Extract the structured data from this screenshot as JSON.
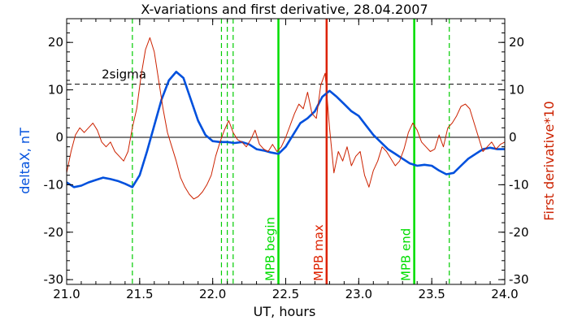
{
  "chart_data": {
    "type": "line",
    "title": "X-variations and first derivative, 28.04.2007",
    "xlabel": "UT, hours",
    "ylabel_left": "deltaX, nT",
    "ylabel_right": "First derivative*10",
    "xlim": [
      21.0,
      24.0
    ],
    "ylim": [
      -31,
      25
    ],
    "x_ticks": [
      21.0,
      21.5,
      22.0,
      22.5,
      23.0,
      23.5,
      24.0
    ],
    "x_tick_labels": [
      "21.0",
      "21.5",
      "22.0",
      "22.5",
      "23.0",
      "23.5",
      "24.0"
    ],
    "y_ticks": [
      -30,
      -20,
      -10,
      0,
      10,
      20
    ],
    "y_tick_labels": [
      "-30",
      "-20",
      "-10",
      "0",
      "10",
      "20"
    ],
    "threshold": {
      "label": "2sigma",
      "value": 11.2
    },
    "zero_line": 0,
    "dashed_markers": [
      21.45,
      22.06,
      22.1,
      22.14,
      23.62
    ],
    "solid_markers": [
      {
        "x": 22.45,
        "label": "MPB begin",
        "color": "#00dd00"
      },
      {
        "x": 22.78,
        "label": "MPB max",
        "color": "#dd2200"
      },
      {
        "x": 23.38,
        "label": "MPB end",
        "color": "#00dd00"
      }
    ],
    "colors": {
      "deltaX": "#0050dd",
      "derivative": "#cc2200",
      "dashed_marker": "#00cc00",
      "threshold": "#000000"
    },
    "series": [
      {
        "key": "deltaX",
        "x": [
          21.0,
          21.05,
          21.1,
          21.15,
          21.2,
          21.25,
          21.3,
          21.35,
          21.4,
          21.45,
          21.5,
          21.55,
          21.6,
          21.65,
          21.7,
          21.75,
          21.8,
          21.85,
          21.9,
          21.95,
          22.0,
          22.05,
          22.1,
          22.15,
          22.2,
          22.25,
          22.3,
          22.35,
          22.4,
          22.45,
          22.5,
          22.55,
          22.6,
          22.65,
          22.7,
          22.75,
          22.8,
          22.85,
          22.9,
          22.95,
          23.0,
          23.05,
          23.1,
          23.15,
          23.2,
          23.25,
          23.3,
          23.35,
          23.4,
          23.45,
          23.5,
          23.55,
          23.6,
          23.65,
          23.7,
          23.75,
          23.8,
          23.85,
          23.9,
          23.95,
          24.0
        ],
        "values": [
          -9.5,
          -10.5,
          -10.2,
          -9.5,
          -9.0,
          -8.5,
          -8.8,
          -9.2,
          -9.8,
          -10.5,
          -8.0,
          -3.0,
          2.5,
          8.0,
          12.0,
          13.8,
          12.5,
          8.0,
          3.5,
          0.5,
          -0.8,
          -1.0,
          -1.0,
          -1.2,
          -1.0,
          -1.5,
          -2.5,
          -2.8,
          -3.2,
          -3.5,
          -2.0,
          0.5,
          3.0,
          4.0,
          5.5,
          8.5,
          9.8,
          8.5,
          7.0,
          5.5,
          4.5,
          2.5,
          0.5,
          -1.0,
          -2.5,
          -3.5,
          -4.5,
          -5.5,
          -6.0,
          -5.8,
          -6.0,
          -7.0,
          -7.8,
          -7.5,
          -6.0,
          -4.5,
          -3.5,
          -2.5,
          -2.2,
          -2.5,
          -2.5
        ]
      },
      {
        "key": "derivative",
        "x": [
          21.0,
          21.03,
          21.06,
          21.09,
          21.12,
          21.15,
          21.18,
          21.21,
          21.24,
          21.27,
          21.3,
          21.33,
          21.36,
          21.39,
          21.42,
          21.45,
          21.48,
          21.51,
          21.54,
          21.57,
          21.6,
          21.63,
          21.66,
          21.69,
          21.72,
          21.75,
          21.78,
          21.81,
          21.84,
          21.87,
          21.9,
          21.93,
          21.96,
          21.99,
          22.02,
          22.05,
          22.08,
          22.11,
          22.14,
          22.17,
          22.2,
          22.23,
          22.26,
          22.29,
          22.32,
          22.35,
          22.38,
          22.41,
          22.44,
          22.47,
          22.5,
          22.53,
          22.56,
          22.59,
          22.62,
          22.65,
          22.68,
          22.71,
          22.74,
          22.77,
          22.8,
          22.83,
          22.86,
          22.89,
          22.92,
          22.95,
          22.98,
          23.01,
          23.04,
          23.07,
          23.1,
          23.13,
          23.16,
          23.19,
          23.22,
          23.25,
          23.28,
          23.31,
          23.34,
          23.37,
          23.4,
          23.43,
          23.46,
          23.49,
          23.52,
          23.55,
          23.58,
          23.61,
          23.64,
          23.67,
          23.7,
          23.73,
          23.76,
          23.79,
          23.82,
          23.85,
          23.88,
          23.91,
          23.94,
          23.97,
          24.0
        ],
        "values": [
          -7.5,
          -3.0,
          0.5,
          2.0,
          1.0,
          2.0,
          3.0,
          1.5,
          -1.0,
          -2.0,
          -1.0,
          -3.0,
          -4.0,
          -5.0,
          -3.0,
          2.0,
          6.0,
          13.0,
          18.5,
          21.0,
          18.0,
          12.0,
          6.0,
          1.0,
          -2.0,
          -5.0,
          -8.5,
          -10.5,
          -12.0,
          -13.0,
          -12.5,
          -11.5,
          -10.0,
          -8.0,
          -4.0,
          -1.0,
          1.5,
          3.5,
          1.0,
          -0.5,
          -1.0,
          -2.0,
          -0.5,
          1.5,
          -1.5,
          -2.5,
          -3.0,
          -1.5,
          -3.0,
          -2.0,
          0.0,
          2.5,
          5.0,
          7.0,
          6.0,
          9.5,
          5.0,
          4.0,
          11.0,
          13.5,
          2.0,
          -7.5,
          -3.0,
          -5.0,
          -2.0,
          -6.0,
          -4.0,
          -3.0,
          -8.0,
          -10.5,
          -7.0,
          -5.0,
          -2.0,
          -3.0,
          -4.5,
          -6.0,
          -5.0,
          -2.5,
          1.0,
          3.0,
          1.5,
          -1.0,
          -2.0,
          -3.0,
          -2.5,
          0.5,
          -2.0,
          2.0,
          3.0,
          4.5,
          6.5,
          7.0,
          6.0,
          3.0,
          0.0,
          -3.0,
          -2.0,
          -1.0,
          -2.5,
          -1.5,
          -1.0
        ]
      }
    ]
  }
}
